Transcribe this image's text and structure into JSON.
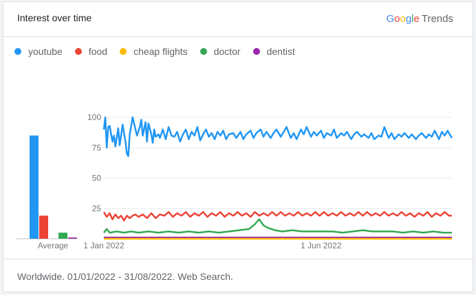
{
  "header": {
    "title": "Interest over time",
    "brand_letters": [
      "G",
      "o",
      "o",
      "g",
      "l",
      "e"
    ],
    "brand_suffix": "Trends"
  },
  "footer": {
    "text": "Worldwide. 01/01/2022 - 31/08/2022. Web Search."
  },
  "chart_data": {
    "type": "line",
    "title": "",
    "xlabel": "",
    "ylabel": "",
    "ylim": [
      0,
      100
    ],
    "y_ticks": [
      25,
      50,
      75,
      100
    ],
    "x_ticks": [
      {
        "date": "2022-01-01",
        "label": "1 Jan 2022"
      },
      {
        "date": "2022-06-01",
        "label": "1 Jun 2022"
      }
    ],
    "xlim": [
      "2022-01-01",
      "2022-08-31"
    ],
    "grid": true,
    "legend_position": "top-left",
    "average_label": "Average",
    "series": [
      {
        "name": "youtube",
        "color": "#2196f3",
        "average": 85,
        "points": [
          [
            "2022-01-01",
            90
          ],
          [
            "2022-01-02",
            100
          ],
          [
            "2022-01-03",
            75
          ],
          [
            "2022-01-04",
            92
          ],
          [
            "2022-01-05",
            93
          ],
          [
            "2022-01-07",
            80
          ],
          [
            "2022-01-08",
            85
          ],
          [
            "2022-01-09",
            76
          ],
          [
            "2022-01-11",
            91
          ],
          [
            "2022-01-12",
            77
          ],
          [
            "2022-01-13",
            85
          ],
          [
            "2022-01-14",
            94
          ],
          [
            "2022-01-16",
            80
          ],
          [
            "2022-01-17",
            70
          ],
          [
            "2022-01-18",
            68
          ],
          [
            "2022-01-19",
            86
          ],
          [
            "2022-01-21",
            100
          ],
          [
            "2022-01-22",
            95
          ],
          [
            "2022-01-23",
            90
          ],
          [
            "2022-01-24",
            85
          ],
          [
            "2022-01-26",
            92
          ],
          [
            "2022-01-27",
            98
          ],
          [
            "2022-01-28",
            85
          ],
          [
            "2022-01-30",
            96
          ],
          [
            "2022-01-31",
            80
          ],
          [
            "2022-02-01",
            95
          ],
          [
            "2022-02-03",
            86
          ],
          [
            "2022-02-04",
            79
          ],
          [
            "2022-02-05",
            90
          ],
          [
            "2022-02-06",
            84
          ],
          [
            "2022-02-08",
            86
          ],
          [
            "2022-02-09",
            83
          ],
          [
            "2022-02-11",
            90
          ],
          [
            "2022-02-13",
            82
          ],
          [
            "2022-02-15",
            92
          ],
          [
            "2022-02-17",
            85
          ],
          [
            "2022-02-19",
            84
          ],
          [
            "2022-02-21",
            88
          ],
          [
            "2022-02-23",
            80
          ],
          [
            "2022-02-25",
            86
          ],
          [
            "2022-02-27",
            90
          ],
          [
            "2022-03-01",
            82
          ],
          [
            "2022-03-03",
            88
          ],
          [
            "2022-03-05",
            85
          ],
          [
            "2022-03-07",
            92
          ],
          [
            "2022-03-09",
            81
          ],
          [
            "2022-03-11",
            86
          ],
          [
            "2022-03-13",
            90
          ],
          [
            "2022-03-15",
            84
          ],
          [
            "2022-03-17",
            87
          ],
          [
            "2022-03-19",
            82
          ],
          [
            "2022-03-21",
            88
          ],
          [
            "2022-03-23",
            85
          ],
          [
            "2022-03-25",
            89
          ],
          [
            "2022-03-27",
            82
          ],
          [
            "2022-03-29",
            86
          ],
          [
            "2022-04-01",
            87
          ],
          [
            "2022-04-03",
            83
          ],
          [
            "2022-04-06",
            88
          ],
          [
            "2022-04-08",
            82
          ],
          [
            "2022-04-10",
            86
          ],
          [
            "2022-04-13",
            89
          ],
          [
            "2022-04-15",
            83
          ],
          [
            "2022-04-17",
            87
          ],
          [
            "2022-04-20",
            90
          ],
          [
            "2022-04-22",
            84
          ],
          [
            "2022-04-24",
            88
          ],
          [
            "2022-04-27",
            83
          ],
          [
            "2022-04-29",
            87
          ],
          [
            "2022-05-01",
            90
          ],
          [
            "2022-05-04",
            84
          ],
          [
            "2022-05-06",
            88
          ],
          [
            "2022-05-08",
            92
          ],
          [
            "2022-05-11",
            83
          ],
          [
            "2022-05-13",
            87
          ],
          [
            "2022-05-15",
            82
          ],
          [
            "2022-05-18",
            90
          ],
          [
            "2022-05-20",
            86
          ],
          [
            "2022-05-22",
            92
          ],
          [
            "2022-05-25",
            84
          ],
          [
            "2022-05-27",
            88
          ],
          [
            "2022-05-29",
            85
          ],
          [
            "2022-06-01",
            89
          ],
          [
            "2022-06-03",
            83
          ],
          [
            "2022-06-05",
            87
          ],
          [
            "2022-06-08",
            85
          ],
          [
            "2022-06-10",
            90
          ],
          [
            "2022-06-12",
            83
          ],
          [
            "2022-06-15",
            87
          ],
          [
            "2022-06-17",
            85
          ],
          [
            "2022-06-19",
            88
          ],
          [
            "2022-06-22",
            82
          ],
          [
            "2022-06-24",
            86
          ],
          [
            "2022-06-26",
            88
          ],
          [
            "2022-06-29",
            84
          ],
          [
            "2022-07-01",
            86
          ],
          [
            "2022-07-04",
            83
          ],
          [
            "2022-07-06",
            87
          ],
          [
            "2022-07-08",
            82
          ],
          [
            "2022-07-11",
            85
          ],
          [
            "2022-07-13",
            84
          ],
          [
            "2022-07-15",
            92
          ],
          [
            "2022-07-18",
            83
          ],
          [
            "2022-07-20",
            87
          ],
          [
            "2022-07-22",
            82
          ],
          [
            "2022-07-25",
            86
          ],
          [
            "2022-07-27",
            84
          ],
          [
            "2022-07-29",
            87
          ],
          [
            "2022-08-01",
            83
          ],
          [
            "2022-08-03",
            86
          ],
          [
            "2022-08-06",
            82
          ],
          [
            "2022-08-08",
            85
          ],
          [
            "2022-08-10",
            87
          ],
          [
            "2022-08-13",
            83
          ],
          [
            "2022-08-15",
            86
          ],
          [
            "2022-08-17",
            84
          ],
          [
            "2022-08-19",
            89
          ],
          [
            "2022-08-22",
            82
          ],
          [
            "2022-08-24",
            88
          ],
          [
            "2022-08-26",
            85
          ],
          [
            "2022-08-28",
            89
          ],
          [
            "2022-08-31",
            83
          ]
        ]
      },
      {
        "name": "food",
        "color": "#ea4335",
        "average": 19,
        "points": [
          [
            "2022-01-01",
            22
          ],
          [
            "2022-01-03",
            18
          ],
          [
            "2022-01-05",
            21
          ],
          [
            "2022-01-07",
            16
          ],
          [
            "2022-01-09",
            20
          ],
          [
            "2022-01-11",
            17
          ],
          [
            "2022-01-13",
            19
          ],
          [
            "2022-01-15",
            15
          ],
          [
            "2022-01-17",
            19
          ],
          [
            "2022-01-19",
            17
          ],
          [
            "2022-01-21",
            19
          ],
          [
            "2022-01-23",
            20
          ],
          [
            "2022-01-25",
            18
          ],
          [
            "2022-01-28",
            20
          ],
          [
            "2022-01-31",
            17
          ],
          [
            "2022-02-03",
            21
          ],
          [
            "2022-02-06",
            17
          ],
          [
            "2022-02-09",
            20
          ],
          [
            "2022-02-12",
            19
          ],
          [
            "2022-02-15",
            22
          ],
          [
            "2022-02-18",
            18
          ],
          [
            "2022-02-21",
            21
          ],
          [
            "2022-02-24",
            19
          ],
          [
            "2022-02-27",
            22
          ],
          [
            "2022-03-02",
            18
          ],
          [
            "2022-03-05",
            21
          ],
          [
            "2022-03-08",
            19
          ],
          [
            "2022-03-11",
            22
          ],
          [
            "2022-03-14",
            18
          ],
          [
            "2022-03-17",
            21
          ],
          [
            "2022-03-20",
            19
          ],
          [
            "2022-03-23",
            22
          ],
          [
            "2022-03-26",
            18
          ],
          [
            "2022-03-29",
            21
          ],
          [
            "2022-04-01",
            19
          ],
          [
            "2022-04-04",
            22
          ],
          [
            "2022-04-07",
            19
          ],
          [
            "2022-04-10",
            21
          ],
          [
            "2022-04-13",
            18
          ],
          [
            "2022-04-16",
            22
          ],
          [
            "2022-04-19",
            19
          ],
          [
            "2022-04-22",
            21
          ],
          [
            "2022-04-25",
            19
          ],
          [
            "2022-04-28",
            22
          ],
          [
            "2022-05-01",
            19
          ],
          [
            "2022-05-04",
            22
          ],
          [
            "2022-05-07",
            19
          ],
          [
            "2022-05-10",
            21
          ],
          [
            "2022-05-13",
            19
          ],
          [
            "2022-05-16",
            22
          ],
          [
            "2022-05-19",
            19
          ],
          [
            "2022-05-22",
            21
          ],
          [
            "2022-05-25",
            19
          ],
          [
            "2022-05-28",
            22
          ],
          [
            "2022-05-31",
            19
          ],
          [
            "2022-06-03",
            22
          ],
          [
            "2022-06-06",
            19
          ],
          [
            "2022-06-09",
            21
          ],
          [
            "2022-06-12",
            19
          ],
          [
            "2022-06-15",
            22
          ],
          [
            "2022-06-18",
            19
          ],
          [
            "2022-06-21",
            21
          ],
          [
            "2022-06-24",
            19
          ],
          [
            "2022-06-27",
            22
          ],
          [
            "2022-06-30",
            19
          ],
          [
            "2022-07-03",
            22
          ],
          [
            "2022-07-06",
            19
          ],
          [
            "2022-07-09",
            21
          ],
          [
            "2022-07-12",
            19
          ],
          [
            "2022-07-15",
            22
          ],
          [
            "2022-07-18",
            19
          ],
          [
            "2022-07-21",
            21
          ],
          [
            "2022-07-24",
            19
          ],
          [
            "2022-07-27",
            22
          ],
          [
            "2022-07-30",
            19
          ],
          [
            "2022-08-02",
            21
          ],
          [
            "2022-08-05",
            18
          ],
          [
            "2022-08-08",
            21
          ],
          [
            "2022-08-11",
            19
          ],
          [
            "2022-08-14",
            22
          ],
          [
            "2022-08-17",
            18
          ],
          [
            "2022-08-20",
            21
          ],
          [
            "2022-08-23",
            19
          ],
          [
            "2022-08-26",
            22
          ],
          [
            "2022-08-29",
            19
          ],
          [
            "2022-08-31",
            19
          ]
        ]
      },
      {
        "name": "cheap flights",
        "color": "#fbbc04",
        "average": 0,
        "points": [
          [
            "2022-01-01",
            0
          ],
          [
            "2022-03-01",
            0
          ],
          [
            "2022-05-01",
            0
          ],
          [
            "2022-07-01",
            0
          ],
          [
            "2022-08-31",
            0
          ]
        ]
      },
      {
        "name": "doctor",
        "color": "#34a853",
        "average": 5,
        "points": [
          [
            "2022-01-01",
            5
          ],
          [
            "2022-01-03",
            8
          ],
          [
            "2022-01-05",
            5
          ],
          [
            "2022-01-10",
            6
          ],
          [
            "2022-01-15",
            5
          ],
          [
            "2022-01-20",
            6
          ],
          [
            "2022-01-25",
            5
          ],
          [
            "2022-02-01",
            6
          ],
          [
            "2022-02-08",
            5
          ],
          [
            "2022-02-15",
            6
          ],
          [
            "2022-02-22",
            5
          ],
          [
            "2022-03-01",
            6
          ],
          [
            "2022-03-08",
            5
          ],
          [
            "2022-03-15",
            6
          ],
          [
            "2022-03-22",
            5
          ],
          [
            "2022-03-29",
            6
          ],
          [
            "2022-04-05",
            7
          ],
          [
            "2022-04-12",
            8
          ],
          [
            "2022-04-16",
            12
          ],
          [
            "2022-04-19",
            16
          ],
          [
            "2022-04-22",
            11
          ],
          [
            "2022-04-25",
            9
          ],
          [
            "2022-04-30",
            7
          ],
          [
            "2022-05-05",
            6
          ],
          [
            "2022-05-12",
            7
          ],
          [
            "2022-05-19",
            6
          ],
          [
            "2022-05-26",
            6
          ],
          [
            "2022-06-02",
            6
          ],
          [
            "2022-06-09",
            6
          ],
          [
            "2022-06-16",
            5
          ],
          [
            "2022-06-23",
            6
          ],
          [
            "2022-06-30",
            7
          ],
          [
            "2022-07-07",
            6
          ],
          [
            "2022-07-14",
            6
          ],
          [
            "2022-07-21",
            6
          ],
          [
            "2022-07-28",
            5
          ],
          [
            "2022-08-04",
            6
          ],
          [
            "2022-08-11",
            5
          ],
          [
            "2022-08-18",
            6
          ],
          [
            "2022-08-25",
            5
          ],
          [
            "2022-08-31",
            5
          ]
        ]
      },
      {
        "name": "dentist",
        "color": "#9c27b0",
        "average": 1,
        "points": [
          [
            "2022-01-01",
            1
          ],
          [
            "2022-02-01",
            1
          ],
          [
            "2022-03-01",
            1
          ],
          [
            "2022-04-01",
            1
          ],
          [
            "2022-05-01",
            1
          ],
          [
            "2022-06-01",
            1
          ],
          [
            "2022-07-01",
            1
          ],
          [
            "2022-08-01",
            1
          ],
          [
            "2022-08-31",
            1
          ]
        ]
      }
    ]
  }
}
